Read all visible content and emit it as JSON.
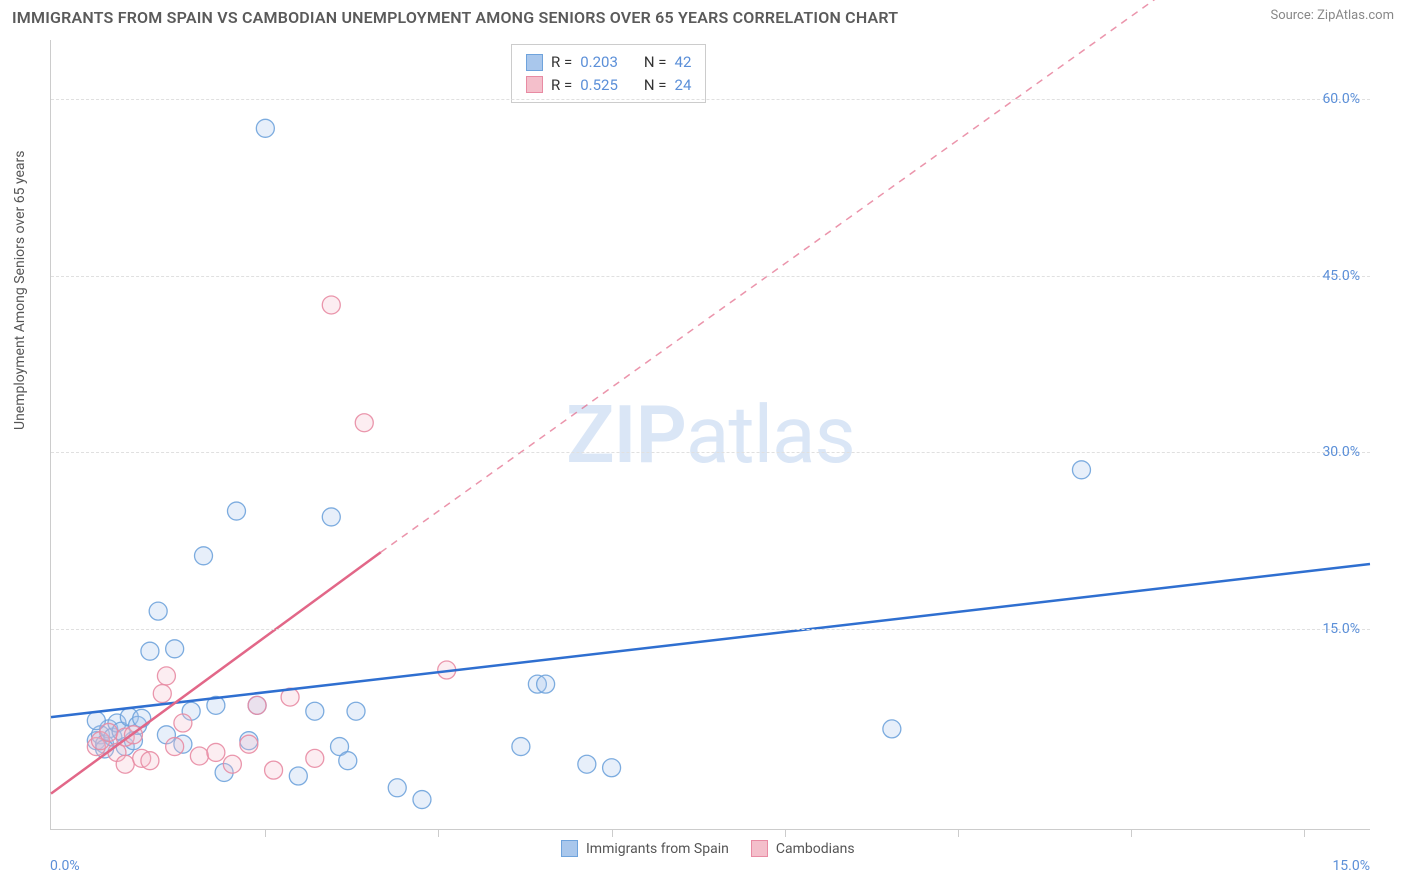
{
  "title": "IMMIGRANTS FROM SPAIN VS CAMBODIAN UNEMPLOYMENT AMONG SENIORS OVER 65 YEARS CORRELATION CHART",
  "source": "Source: ZipAtlas.com",
  "yaxis_label": "Unemployment Among Seniors over 65 years",
  "watermark_bold": "ZIP",
  "watermark_light": "atlas",
  "chart": {
    "type": "scatter",
    "background_color": "#ffffff",
    "grid_color": "#e0e0e0",
    "axis_color": "#cccccc",
    "tick_label_color": "#5b8fd8",
    "axis_text_color": "#555555",
    "xlim": [
      -0.5,
      15.5
    ],
    "ylim": [
      -2.0,
      65.0
    ],
    "y_ticks": [
      15.0,
      30.0,
      45.0,
      60.0
    ],
    "y_tick_labels": [
      "15.0%",
      "30.0%",
      "45.0%",
      "60.0%"
    ],
    "x_axis_label_left": "0.0%",
    "x_axis_label_right": "15.0%",
    "x_tick_positions": [
      2.1,
      4.2,
      6.3,
      8.4,
      10.5,
      12.6,
      14.7
    ],
    "marker_radius": 9,
    "marker_fill_opacity": 0.28,
    "marker_stroke_opacity": 0.9,
    "series": [
      {
        "name": "Immigrants from Spain",
        "color_fill": "#a9c7ec",
        "color_stroke": "#6fa3dc",
        "trend_line_color": "#2f6fd0",
        "trend_line_width": 2.5,
        "trend_dashed": false,
        "trend_x1": -0.5,
        "trend_y1": 7.5,
        "trend_x2": 15.5,
        "trend_y2": 20.5,
        "R": "0.203",
        "N": "42",
        "points": [
          [
            0.05,
            5.5
          ],
          [
            0.1,
            6.0
          ],
          [
            0.15,
            5.2
          ],
          [
            0.2,
            6.5
          ],
          [
            0.25,
            5.8
          ],
          [
            0.3,
            7.0
          ],
          [
            0.05,
            7.2
          ],
          [
            0.35,
            6.3
          ],
          [
            0.4,
            5.0
          ],
          [
            0.45,
            7.5
          ],
          [
            0.5,
            5.5
          ],
          [
            0.55,
            6.8
          ],
          [
            0.6,
            7.4
          ],
          [
            0.7,
            13.1
          ],
          [
            0.8,
            16.5
          ],
          [
            0.9,
            6.0
          ],
          [
            1.0,
            13.3
          ],
          [
            1.1,
            5.2
          ],
          [
            1.2,
            8.0
          ],
          [
            1.35,
            21.2
          ],
          [
            1.5,
            8.5
          ],
          [
            1.6,
            2.8
          ],
          [
            1.75,
            25.0
          ],
          [
            1.9,
            5.5
          ],
          [
            2.0,
            8.5
          ],
          [
            2.1,
            57.5
          ],
          [
            2.5,
            2.5
          ],
          [
            2.7,
            8.0
          ],
          [
            2.9,
            24.5
          ],
          [
            3.0,
            5.0
          ],
          [
            3.1,
            3.8
          ],
          [
            3.2,
            8.0
          ],
          [
            3.7,
            1.5
          ],
          [
            4.0,
            0.5
          ],
          [
            5.2,
            5.0
          ],
          [
            5.4,
            10.3
          ],
          [
            5.5,
            10.3
          ],
          [
            6.0,
            3.5
          ],
          [
            6.3,
            3.2
          ],
          [
            9.7,
            6.5
          ],
          [
            12.0,
            28.5
          ],
          [
            0.15,
            4.8
          ]
        ]
      },
      {
        "name": "Cambodians",
        "color_fill": "#f4bfcb",
        "color_stroke": "#e88ba3",
        "trend_line_color": "#e26788",
        "trend_line_width": 2.5,
        "trend_dashed": false,
        "trend_x1": -0.5,
        "trend_y1": 1.0,
        "trend_x2": 3.5,
        "trend_y2": 21.5,
        "trend_dashed_x1": 3.5,
        "trend_dashed_y1": 21.5,
        "trend_dashed_x2": 14.0,
        "trend_dashed_y2": 74.0,
        "R": "0.525",
        "N": "24",
        "points": [
          [
            0.05,
            5.0
          ],
          [
            0.1,
            5.5
          ],
          [
            0.2,
            6.2
          ],
          [
            0.3,
            4.5
          ],
          [
            0.4,
            5.8
          ],
          [
            0.4,
            3.5
          ],
          [
            0.5,
            6.0
          ],
          [
            0.6,
            4.0
          ],
          [
            0.7,
            3.8
          ],
          [
            0.85,
            9.5
          ],
          [
            0.9,
            11.0
          ],
          [
            1.0,
            5.0
          ],
          [
            1.1,
            7.0
          ],
          [
            1.3,
            4.2
          ],
          [
            1.5,
            4.5
          ],
          [
            1.7,
            3.5
          ],
          [
            1.9,
            5.2
          ],
          [
            2.0,
            8.5
          ],
          [
            2.2,
            3.0
          ],
          [
            2.4,
            9.2
          ],
          [
            2.7,
            4.0
          ],
          [
            2.9,
            42.5
          ],
          [
            3.3,
            32.5
          ],
          [
            4.3,
            11.5
          ]
        ]
      }
    ],
    "stat_legend_labels": {
      "R_prefix": "R = ",
      "N_prefix": "N = "
    }
  }
}
